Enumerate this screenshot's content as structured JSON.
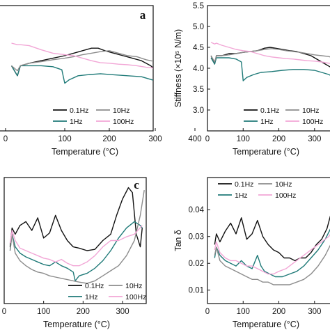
{
  "colors": {
    "0.1Hz": "#111111",
    "1Hz": "#1f7a78",
    "10Hz": "#8c8c8c",
    "100Hz": "#f2a6d6"
  },
  "chart_data": [
    {
      "type": "line",
      "panel_label": "a",
      "xlabel": "Temperature (°C)",
      "ylabel": "",
      "xlim": [
        0,
        355
      ],
      "ylim": [
        3.0,
        5.5
      ],
      "xticks": [
        "0",
        "100",
        "200",
        "300",
        "400"
      ],
      "legend": [
        "0.1Hz",
        "10Hz",
        "1Hz",
        "100Hz"
      ],
      "legend_position": "bottom",
      "series": [
        {
          "name": "0.1Hz",
          "x": [
            10,
            20,
            25,
            40,
            60,
            80,
            100,
            120,
            140,
            160,
            175,
            190,
            210,
            230,
            250,
            270,
            290,
            310,
            330,
            350
          ],
          "y": [
            4.3,
            4.1,
            4.3,
            4.35,
            4.4,
            4.45,
            4.5,
            4.55,
            4.6,
            4.65,
            4.65,
            4.6,
            4.55,
            4.5,
            4.45,
            4.4,
            4.3,
            4.15,
            4.0,
            3.9
          ]
        },
        {
          "name": "1Hz",
          "x": [
            10,
            20,
            25,
            40,
            60,
            80,
            95,
            100,
            110,
            130,
            150,
            180,
            210,
            240,
            270,
            300,
            320,
            340,
            350
          ],
          "y": [
            4.3,
            4.1,
            4.3,
            4.3,
            4.3,
            4.28,
            4.22,
            3.95,
            4.02,
            4.1,
            4.12,
            4.14,
            4.12,
            4.1,
            4.08,
            4.0,
            3.92,
            3.85,
            3.78
          ]
        },
        {
          "name": "10Hz",
          "x": [
            10,
            20,
            25,
            40,
            60,
            80,
            100,
            120,
            140,
            160,
            180,
            200,
            220,
            240,
            260,
            280,
            300,
            320,
            340,
            350
          ],
          "y": [
            4.3,
            4.2,
            4.3,
            4.35,
            4.38,
            4.42,
            4.45,
            4.48,
            4.52,
            4.55,
            4.58,
            4.6,
            4.55,
            4.5,
            4.48,
            4.42,
            4.38,
            4.36,
            4.35,
            4.35
          ]
        },
        {
          "name": "100Hz",
          "x": [
            10,
            20,
            25,
            40,
            60,
            80,
            100,
            120,
            140,
            160,
            180,
            200,
            220,
            240,
            260,
            280,
            300,
            320,
            340,
            350
          ],
          "y": [
            4.75,
            4.72,
            4.72,
            4.7,
            4.62,
            4.55,
            4.52,
            4.5,
            4.45,
            4.4,
            4.36,
            4.35,
            4.33,
            4.32,
            4.3,
            4.27,
            4.25,
            4.22,
            4.2,
            4.2
          ]
        }
      ]
    },
    {
      "type": "line",
      "panel_label": "",
      "xlabel": "Temperature (°C)",
      "ylabel": "Stiffness (×10⁵ N/m)",
      "xlim": [
        0,
        355
      ],
      "ylim": [
        2.5,
        5.5
      ],
      "yticks": [
        "3.0",
        "3.5",
        "4.0",
        "4.5",
        "5.0",
        "5.5"
      ],
      "xticks": [
        "0",
        "100",
        "200",
        "300"
      ],
      "legend": [
        "0.1Hz",
        "10Hz",
        "1Hz",
        "100Hz"
      ],
      "legend_position": "bottom",
      "series": [
        {
          "name": "0.1Hz",
          "x": [
            10,
            20,
            25,
            40,
            60,
            80,
            100,
            120,
            140,
            160,
            175,
            190,
            210,
            230,
            250,
            270,
            290,
            310,
            330,
            350
          ],
          "y": [
            4.3,
            4.1,
            4.3,
            4.3,
            4.35,
            4.35,
            4.38,
            4.4,
            4.42,
            4.48,
            4.5,
            4.48,
            4.45,
            4.42,
            4.4,
            4.35,
            4.3,
            4.2,
            4.1,
            4.0
          ]
        },
        {
          "name": "1Hz",
          "x": [
            10,
            20,
            25,
            40,
            60,
            80,
            95,
            100,
            110,
            130,
            150,
            180,
            210,
            240,
            270,
            300,
            320,
            340,
            350
          ],
          "y": [
            4.25,
            4.1,
            4.25,
            4.25,
            4.25,
            4.22,
            4.15,
            3.7,
            3.78,
            3.85,
            3.9,
            3.92,
            3.95,
            3.97,
            3.97,
            3.95,
            3.9,
            3.85,
            3.8
          ]
        },
        {
          "name": "10Hz",
          "x": [
            10,
            20,
            25,
            40,
            60,
            80,
            100,
            120,
            140,
            160,
            180,
            200,
            220,
            240,
            260,
            280,
            300,
            320,
            340,
            350
          ],
          "y": [
            4.3,
            4.15,
            4.3,
            4.3,
            4.32,
            4.35,
            4.38,
            4.4,
            4.42,
            4.45,
            4.47,
            4.45,
            4.42,
            4.4,
            4.38,
            4.35,
            4.32,
            4.3,
            4.28,
            4.25
          ]
        },
        {
          "name": "100Hz",
          "x": [
            10,
            20,
            25,
            40,
            60,
            80,
            100,
            120,
            140,
            160,
            180,
            200,
            220,
            240,
            260,
            280,
            300,
            320,
            340,
            350
          ],
          "y": [
            4.62,
            4.58,
            4.6,
            4.55,
            4.5,
            4.45,
            4.42,
            4.4,
            4.35,
            4.3,
            4.27,
            4.25,
            4.23,
            4.22,
            4.2,
            4.18,
            4.17,
            4.15,
            4.12,
            4.1
          ]
        }
      ]
    },
    {
      "type": "line",
      "panel_label": "c",
      "xlabel": "Temperature (°C)",
      "ylabel": "",
      "xlim": [
        0,
        360
      ],
      "ylim": [
        0,
        1
      ],
      "xticks": [
        "0",
        "100",
        "200",
        "300"
      ],
      "legend": [
        "0.1Hz",
        "10Hz",
        "1Hz",
        "100Hz"
      ],
      "legend_position": "bottom-right",
      "series": [
        {
          "name": "0.1Hz",
          "x": [
            15,
            20,
            28,
            40,
            55,
            70,
            85,
            100,
            115,
            130,
            145,
            160,
            175,
            190,
            210,
            230,
            250,
            270,
            285,
            300,
            315,
            325,
            335,
            345,
            350
          ],
          "y": [
            0.45,
            0.6,
            0.55,
            0.62,
            0.65,
            0.58,
            0.68,
            0.52,
            0.56,
            0.7,
            0.58,
            0.5,
            0.45,
            0.44,
            0.42,
            0.43,
            0.5,
            0.55,
            0.7,
            0.83,
            0.92,
            0.88,
            0.55,
            0.45,
            0.6
          ]
        },
        {
          "name": "1Hz",
          "x": [
            15,
            20,
            28,
            40,
            55,
            70,
            85,
            100,
            115,
            130,
            145,
            160,
            175,
            180,
            190,
            210,
            230,
            250,
            270,
            290,
            310,
            330,
            345,
            350
          ],
          "y": [
            0.42,
            0.55,
            0.45,
            0.4,
            0.37,
            0.35,
            0.33,
            0.31,
            0.3,
            0.33,
            0.3,
            0.28,
            0.25,
            0.18,
            0.22,
            0.24,
            0.28,
            0.34,
            0.42,
            0.52,
            0.6,
            0.65,
            0.62,
            0.6
          ]
        },
        {
          "name": "10Hz",
          "x": [
            15,
            20,
            28,
            40,
            55,
            70,
            85,
            100,
            115,
            130,
            145,
            160,
            175,
            190,
            210,
            230,
            250,
            270,
            290,
            310,
            330,
            345,
            355
          ],
          "y": [
            0.42,
            0.55,
            0.4,
            0.34,
            0.3,
            0.27,
            0.25,
            0.24,
            0.22,
            0.21,
            0.2,
            0.19,
            0.18,
            0.17,
            0.16,
            0.18,
            0.22,
            0.26,
            0.3,
            0.38,
            0.5,
            0.7,
            0.9
          ]
        },
        {
          "name": "100Hz",
          "x": [
            15,
            20,
            28,
            40,
            55,
            70,
            85,
            100,
            115,
            130,
            145,
            160,
            175,
            190,
            210,
            230,
            250,
            270,
            290,
            310,
            330,
            350
          ],
          "y": [
            0.48,
            0.58,
            0.5,
            0.44,
            0.42,
            0.4,
            0.38,
            0.36,
            0.35,
            0.33,
            0.35,
            0.32,
            0.3,
            0.3,
            0.33,
            0.38,
            0.45,
            0.5,
            0.5,
            0.53,
            0.55,
            0.62
          ]
        }
      ]
    },
    {
      "type": "line",
      "panel_label": "",
      "xlabel": "Temperature (°C)",
      "ylabel": "Tan δ",
      "xlim": [
        0,
        355
      ],
      "ylim": [
        0.005,
        0.052
      ],
      "yticks": [
        "0.01",
        "0.02",
        "0.03",
        "0.04"
      ],
      "xticks": [
        "0",
        "100",
        "200",
        "300"
      ],
      "legend": [
        "0.1Hz",
        "10Hz",
        "1Hz",
        "100Hz"
      ],
      "legend_position": "top",
      "series": [
        {
          "name": "0.1Hz",
          "x": [
            20,
            25,
            35,
            50,
            65,
            80,
            95,
            110,
            125,
            140,
            155,
            170,
            185,
            200,
            215,
            230,
            245,
            260,
            275,
            290,
            305,
            320,
            335,
            345,
            355
          ],
          "y": [
            0.027,
            0.031,
            0.028,
            0.032,
            0.035,
            0.031,
            0.037,
            0.029,
            0.031,
            0.036,
            0.03,
            0.027,
            0.025,
            0.024,
            0.022,
            0.022,
            0.021,
            0.022,
            0.022,
            0.024,
            0.027,
            0.029,
            0.033,
            0.038,
            0.049
          ]
        },
        {
          "name": "1Hz",
          "x": [
            20,
            25,
            35,
            50,
            65,
            80,
            95,
            110,
            125,
            140,
            150,
            160,
            175,
            190,
            210,
            230,
            250,
            270,
            290,
            310,
            330,
            345,
            355
          ],
          "y": [
            0.022,
            0.026,
            0.023,
            0.021,
            0.02,
            0.019,
            0.021,
            0.019,
            0.018,
            0.023,
            0.019,
            0.017,
            0.016,
            0.015,
            0.015,
            0.016,
            0.017,
            0.019,
            0.022,
            0.025,
            0.029,
            0.033,
            0.037
          ]
        },
        {
          "name": "10Hz",
          "x": [
            20,
            25,
            35,
            50,
            65,
            80,
            95,
            110,
            125,
            140,
            155,
            170,
            185,
            200,
            215,
            230,
            250,
            270,
            290,
            310,
            330,
            345,
            355
          ],
          "y": [
            0.023,
            0.026,
            0.021,
            0.019,
            0.018,
            0.017,
            0.016,
            0.015,
            0.014,
            0.014,
            0.013,
            0.013,
            0.012,
            0.012,
            0.012,
            0.012,
            0.013,
            0.014,
            0.016,
            0.019,
            0.023,
            0.027,
            0.032
          ]
        },
        {
          "name": "100Hz",
          "x": [
            20,
            25,
            35,
            50,
            65,
            80,
            95,
            110,
            125,
            140,
            155,
            170,
            185,
            200,
            220,
            240,
            260,
            280,
            300,
            320,
            340,
            355
          ],
          "y": [
            0.025,
            0.028,
            0.024,
            0.022,
            0.021,
            0.021,
            0.02,
            0.019,
            0.019,
            0.018,
            0.017,
            0.016,
            0.016,
            0.017,
            0.018,
            0.02,
            0.022,
            0.024,
            0.026,
            0.028,
            0.03,
            0.033
          ]
        }
      ]
    }
  ]
}
